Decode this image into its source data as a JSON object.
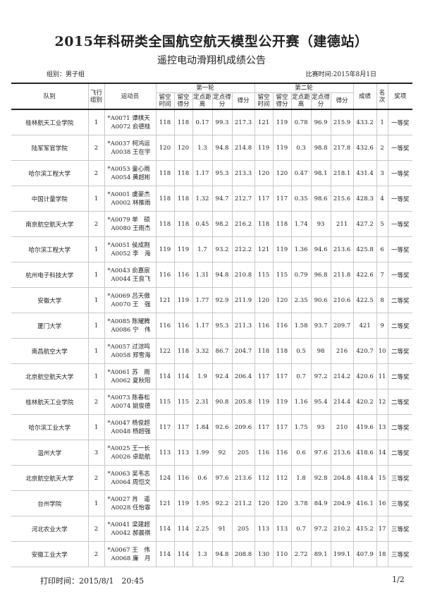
{
  "title": "2015年科研类全国航空航天模型公开赛（建德站）",
  "subtitle": "遥控电动滑翔机成绩公告",
  "group": "组别：男子组",
  "date": "比赛时间:2015年8月1日",
  "headers": {
    "team": "队别",
    "flight_group": "飞行组别",
    "athletes": "运动员",
    "round1": "第一轮",
    "round2": "第二轮",
    "sub": [
      "留空时间",
      "留空得分",
      "定点距离",
      "定点得分",
      "得分"
    ],
    "total": "成绩",
    "rank": "名次",
    "award": "奖项"
  },
  "rows": [
    [
      "桂林航天工业学院",
      "1",
      "*A0071 谭棋天",
      "A0072 俞德桂",
      "118",
      "118",
      "0.17",
      "99.3",
      "217.3",
      "121",
      "119",
      "0.78",
      "96.9",
      "215.9",
      "433.2",
      "1",
      "一等奖"
    ],
    [
      "陆军军官学院",
      "2",
      "*A0037 柯鸿运",
      "A0038 王在宇",
      "120",
      "120",
      "1.3",
      "94.8",
      "214.8",
      "119",
      "119",
      "0.3",
      "98.8",
      "217.8",
      "432.6",
      "2",
      "一等奖"
    ],
    [
      "哈尔滨工程大学",
      "2",
      "*A0053 童心雨",
      "A0054 黄超彬",
      "118",
      "118",
      "1.17",
      "95.3",
      "213.3",
      "120",
      "120",
      "0.47",
      "98.1",
      "218.1",
      "431.4",
      "3",
      "一等奖"
    ],
    [
      "中国计量学院",
      "1",
      "*A0001 虞豪杰",
      "A0002 林推雨",
      "118",
      "118",
      "1.32",
      "94.7",
      "212.7",
      "117",
      "117",
      "0.35",
      "98.6",
      "215.6",
      "428.3",
      "4",
      "一等奖"
    ],
    [
      "南京航空航天大学",
      "2",
      "*A0079 单　硕",
      "A0080 王雨杰",
      "118",
      "118",
      "0.45",
      "98.2",
      "216.2",
      "118",
      "118",
      "1.74",
      "93",
      "211",
      "427.2",
      "5",
      "一等奖"
    ],
    [
      "哈尔滨工程大学",
      "1",
      "*A0051 侯成刚",
      "A0052 李　海",
      "119",
      "119",
      "1.7",
      "93.2",
      "212.2",
      "121",
      "119",
      "1.36",
      "94.6",
      "213.6",
      "425.8",
      "6",
      "一等奖"
    ],
    [
      "杭州电子科技大学",
      "1",
      "*A0043 俞嘉宸",
      "A0044 王良飞",
      "116",
      "116",
      "1.31",
      "94.8",
      "210.8",
      "115",
      "115",
      "0.79",
      "96.8",
      "211.8",
      "422.6",
      "7",
      "一等奖"
    ],
    [
      "安徽大学",
      "1",
      "*A0069 吕天傲",
      "A0070 王　强",
      "121",
      "119",
      "1.77",
      "92.9",
      "211.9",
      "120",
      "120",
      "2.35",
      "90.6",
      "210.6",
      "422.5",
      "8",
      "二等奖"
    ],
    [
      "厦门大学",
      "1",
      "*A0085 陈耀腾",
      "A0086 宁　伟",
      "116",
      "116",
      "1.17",
      "95.3",
      "211.3",
      "116",
      "116",
      "1.58",
      "93.7",
      "209.7",
      "421",
      "9",
      "二等奖"
    ],
    [
      "南昌航空大学",
      "1",
      "*A0057 过淙鸣",
      "A0058 郑雪海",
      "122",
      "118",
      "3.32",
      "86.7",
      "204.7",
      "118",
      "118",
      "0.5",
      "98",
      "216",
      "420.7",
      "10",
      "二等奖"
    ],
    [
      "北京航空航天大学",
      "1",
      "*A0061 苏　雨",
      "A0062 夏秋阳",
      "114",
      "114",
      "1.9",
      "92.4",
      "206.4",
      "117",
      "117",
      "0.7",
      "97.2",
      "214.2",
      "420.6",
      "11",
      "二等奖"
    ],
    [
      "桂林航天工业学院",
      "2",
      "*A0073 陈春松",
      "A0074 姚俊德",
      "115",
      "115",
      "2.31",
      "90.8",
      "205.8",
      "119",
      "119",
      "1.16",
      "95.4",
      "214.4",
      "420.2",
      "12",
      "二等奖"
    ],
    [
      "哈尔滨工业大学",
      "1",
      "*A0047 杨俊超",
      "A0048 杨超强",
      "117",
      "117",
      "1.84",
      "92.6",
      "209.6",
      "117",
      "117",
      "1.75",
      "93",
      "210",
      "419.6",
      "13",
      "二等奖"
    ],
    [
      "温州大学",
      "3",
      "*A0025 王一长",
      "A0026 卓助航",
      "113",
      "113",
      "1.99",
      "92",
      "205",
      "116",
      "116",
      "0.6",
      "97.6",
      "213.6",
      "418.6",
      "14",
      "二等奖"
    ],
    [
      "北京航空航天大学",
      "2",
      "*A0063 吴韦志",
      "A0064 周恺文",
      "124",
      "116",
      "0.6",
      "97.6",
      "213.6",
      "112",
      "112",
      "1.8",
      "92.8",
      "204.8",
      "418.4",
      "15",
      "三等奖"
    ],
    [
      "台州学院",
      "1",
      "*A0027 肖　遥",
      "A0028 任怡霏",
      "121",
      "119",
      "1.95",
      "92.2",
      "211.2",
      "120",
      "120",
      "3.78",
      "84.9",
      "204.9",
      "416.1",
      "16",
      "三等奖"
    ],
    [
      "河北农业大学",
      "2",
      "*A0041 梁建超",
      "A0042 郝晨祺",
      "114",
      "114",
      "2.25",
      "91",
      "205",
      "113",
      "113",
      "0.7",
      "97.2",
      "210.2",
      "415.2",
      "17",
      "三等奖"
    ],
    [
      "安徽工业大学",
      "2",
      "*A0067 王　伟",
      "A0068 廉　月",
      "114",
      "114",
      "1.3",
      "94.8",
      "208.8",
      "130",
      "110",
      "2.72",
      "89.1",
      "199.1",
      "407.9",
      "18",
      "三等奖"
    ]
  ],
  "footer": {
    "print_time": "打印时间：2015/8/1　20:45",
    "page": "1/2"
  }
}
